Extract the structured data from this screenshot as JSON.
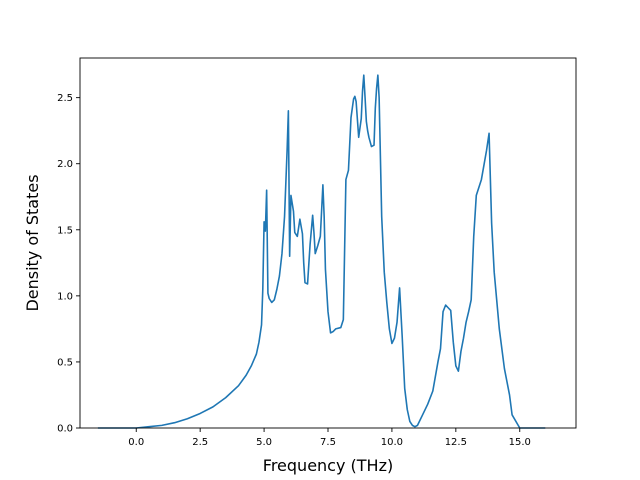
{
  "chart_data": {
    "type": "line",
    "title": "",
    "xlabel": "Frequency (THz)",
    "ylabel": "Density of States",
    "xlim": [
      -2.2,
      17.2
    ],
    "ylim": [
      0,
      2.8
    ],
    "xticks": [
      0.0,
      2.5,
      5.0,
      7.5,
      10.0,
      12.5,
      15.0
    ],
    "xtick_labels": [
      "0.0",
      "2.5",
      "5.0",
      "7.5",
      "10.0",
      "12.5",
      "15.0"
    ],
    "yticks": [
      0.0,
      0.5,
      1.0,
      1.5,
      2.0,
      2.5
    ],
    "ytick_labels": [
      "0.0",
      "0.5",
      "1.0",
      "1.5",
      "2.0",
      "2.5"
    ],
    "grid": false,
    "color": "#1f77b4",
    "series": [
      {
        "x": [
          -1.5,
          0.0,
          0.5,
          1.0,
          1.5,
          2.0,
          2.5,
          3.0,
          3.5,
          4.0,
          4.3,
          4.5,
          4.7,
          4.8,
          4.9,
          4.95,
          5.0,
          5.05,
          5.1,
          5.15,
          5.2,
          5.3,
          5.4,
          5.5,
          5.6,
          5.7,
          5.8,
          5.9,
          5.95,
          6.0,
          6.05,
          6.1,
          6.15,
          6.2,
          6.3,
          6.4,
          6.5,
          6.55,
          6.6,
          6.7,
          6.8,
          6.9,
          6.95,
          7.0,
          7.1,
          7.2,
          7.3,
          7.35,
          7.4,
          7.5,
          7.6,
          7.7,
          7.8,
          8.0,
          8.1,
          8.2,
          8.3,
          8.4,
          8.5,
          8.55,
          8.6,
          8.7,
          8.8,
          8.85,
          8.9,
          8.95,
          9.0,
          9.05,
          9.1,
          9.2,
          9.3,
          9.35,
          9.4,
          9.45,
          9.5,
          9.6,
          9.7,
          9.8,
          9.9,
          10.0,
          10.1,
          10.2,
          10.3,
          10.4,
          10.5,
          10.6,
          10.7,
          10.8,
          10.9,
          11.0,
          11.2,
          11.4,
          11.6,
          11.8,
          11.9,
          12.0,
          12.1,
          12.2,
          12.3,
          12.4,
          12.5,
          12.6,
          12.7,
          12.8,
          12.9,
          13.0,
          13.1,
          13.2,
          13.3,
          13.5,
          13.7,
          13.8,
          13.9,
          14.0,
          14.2,
          14.4,
          14.5,
          14.6,
          14.7,
          15.0,
          16.0
        ],
        "y": [
          0.0,
          0.0,
          0.01,
          0.02,
          0.04,
          0.07,
          0.11,
          0.16,
          0.23,
          0.32,
          0.4,
          0.47,
          0.56,
          0.65,
          0.78,
          1.05,
          1.56,
          1.49,
          1.8,
          1.02,
          0.98,
          0.95,
          0.97,
          1.05,
          1.15,
          1.32,
          1.6,
          2.1,
          2.4,
          1.3,
          1.76,
          1.7,
          1.64,
          1.48,
          1.45,
          1.58,
          1.47,
          1.25,
          1.1,
          1.09,
          1.39,
          1.61,
          1.48,
          1.32,
          1.38,
          1.45,
          1.84,
          1.6,
          1.2,
          0.88,
          0.72,
          0.73,
          0.75,
          0.76,
          0.82,
          1.88,
          1.95,
          2.35,
          2.49,
          2.51,
          2.47,
          2.2,
          2.34,
          2.55,
          2.67,
          2.5,
          2.32,
          2.25,
          2.2,
          2.13,
          2.14,
          2.42,
          2.57,
          2.67,
          2.5,
          1.6,
          1.18,
          0.95,
          0.75,
          0.64,
          0.68,
          0.8,
          1.06,
          0.7,
          0.3,
          0.14,
          0.05,
          0.02,
          0.01,
          0.02,
          0.1,
          0.18,
          0.28,
          0.5,
          0.6,
          0.88,
          0.93,
          0.91,
          0.89,
          0.65,
          0.47,
          0.43,
          0.58,
          0.68,
          0.8,
          0.88,
          0.97,
          1.45,
          1.76,
          1.88,
          2.1,
          2.23,
          1.55,
          1.18,
          0.75,
          0.45,
          0.35,
          0.25,
          0.1,
          0.0,
          0.0
        ]
      }
    ]
  }
}
